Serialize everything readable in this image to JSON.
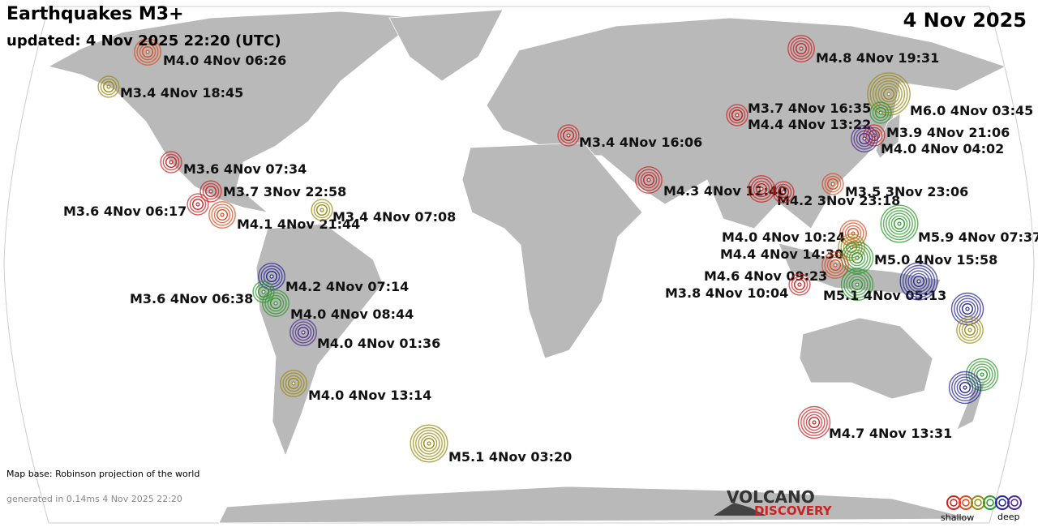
{
  "header": {
    "title": "Earthquakes M3+",
    "updated": "updated:  4 Nov 2025 22:20 (UTC)",
    "date": "4 Nov 2025"
  },
  "quakes": [
    {
      "label": "M4.0  4Nov 06:26"
    },
    {
      "label": "M3.4  4Nov 18:45"
    },
    {
      "label": "M3.6  4Nov 07:34"
    },
    {
      "label": "M3.7  3Nov 22:58"
    },
    {
      "label": "M3.6  4Nov 06:17"
    },
    {
      "label": "M4.1  4Nov 21:44"
    },
    {
      "label": "M3.4  4Nov 07:08"
    },
    {
      "label": "M4.2  4Nov 07:14"
    },
    {
      "label": "M3.6  4Nov 06:38"
    },
    {
      "label": "M4.0  4Nov 08:44"
    },
    {
      "label": "M4.0  4Nov 01:36"
    },
    {
      "label": "M4.0  4Nov 13:14"
    },
    {
      "label": "M5.1  4Nov 03:20"
    },
    {
      "label": "M3.4  4Nov 16:06"
    },
    {
      "label": "M4.3  4Nov 12:40"
    },
    {
      "label": "M4.8  4Nov 19:31"
    },
    {
      "label": "M3.7  4Nov 16:35"
    },
    {
      "label": "M4.4  4Nov 13:22"
    },
    {
      "label": "M6.0  4Nov 03:45"
    },
    {
      "label": "M3.9  4Nov 21:06"
    },
    {
      "label": "M4.0  4Nov 04:02"
    },
    {
      "label": "M3.5  3Nov 23:06"
    },
    {
      "label": "M4.2  3Nov 23:18"
    },
    {
      "label": "M5.9  4Nov 07:37"
    },
    {
      "label": "M4.0  4Nov 10:24"
    },
    {
      "label": "M4.4  4Nov 14:30"
    },
    {
      "label": "M5.0  4Nov 15:58"
    },
    {
      "label": "M4.6  4Nov 09:23"
    },
    {
      "label": "M3.8  4Nov 10:04"
    },
    {
      "label": "M5.1  4Nov 05:13"
    },
    {
      "label": "M4.7  4Nov 13:31"
    }
  ],
  "footer": {
    "map_base": "Map base: Robinson projection of the world",
    "generated": "generated in 0.14ms  4 Nov 2025 22:20",
    "logo_top": "VOLCANO",
    "logo_bottom": "DISCOVERY",
    "legend_shallow": "shallow",
    "legend_deep": "deep"
  }
}
